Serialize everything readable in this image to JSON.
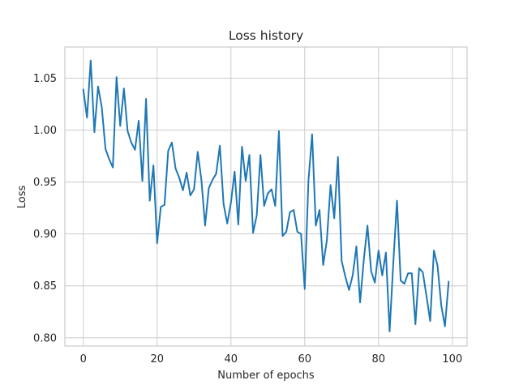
{
  "chart_data": {
    "type": "line",
    "title": "Loss history",
    "xlabel": "Number of epochs",
    "ylabel": "Loss",
    "xlim": [
      -5,
      104
    ],
    "ylim": [
      0.792,
      1.08
    ],
    "xticks": [
      0,
      20,
      40,
      60,
      80,
      100
    ],
    "yticks": [
      0.8,
      0.85,
      0.9,
      0.95,
      1.0,
      1.05
    ],
    "xtick_labels": [
      "0",
      "20",
      "40",
      "60",
      "80",
      "100"
    ],
    "ytick_labels": [
      "0.80",
      "0.85",
      "0.90",
      "0.95",
      "1.00",
      "1.05"
    ],
    "grid": true,
    "legend": "none",
    "series": [
      {
        "color": "#1f77b4",
        "x": [
          0,
          1,
          2,
          3,
          4,
          5,
          6,
          7,
          8,
          9,
          10,
          11,
          12,
          13,
          14,
          15,
          16,
          17,
          18,
          19,
          20,
          21,
          22,
          23,
          24,
          25,
          26,
          27,
          28,
          29,
          30,
          31,
          32,
          33,
          34,
          35,
          36,
          37,
          38,
          39,
          40,
          41,
          42,
          43,
          44,
          45,
          46,
          47,
          48,
          49,
          50,
          51,
          52,
          53,
          54,
          55,
          56,
          57,
          58,
          59,
          60,
          61,
          62,
          63,
          64,
          65,
          66,
          67,
          68,
          69,
          70,
          71,
          72,
          73,
          74,
          75,
          76,
          77,
          78,
          79,
          80,
          81,
          82,
          83,
          84,
          85,
          86,
          87,
          88,
          89,
          90,
          91,
          92,
          93,
          94,
          95,
          96,
          97,
          98,
          99
        ],
        "y": [
          1.039,
          1.012,
          1.067,
          0.998,
          1.042,
          1.022,
          0.982,
          0.972,
          0.964,
          1.051,
          1.004,
          1.04,
          0.999,
          0.988,
          0.981,
          1.009,
          0.951,
          1.03,
          0.932,
          0.966,
          0.891,
          0.926,
          0.928,
          0.98,
          0.988,
          0.963,
          0.954,
          0.942,
          0.959,
          0.937,
          0.943,
          0.979,
          0.952,
          0.908,
          0.944,
          0.952,
          0.958,
          0.985,
          0.929,
          0.91,
          0.93,
          0.96,
          0.909,
          0.984,
          0.951,
          0.976,
          0.901,
          0.918,
          0.976,
          0.927,
          0.939,
          0.943,
          0.927,
          0.999,
          0.898,
          0.902,
          0.921,
          0.923,
          0.902,
          0.9,
          0.847,
          0.951,
          0.996,
          0.908,
          0.923,
          0.87,
          0.894,
          0.947,
          0.915,
          0.974,
          0.874,
          0.859,
          0.846,
          0.86,
          0.888,
          0.834,
          0.875,
          0.908,
          0.864,
          0.853,
          0.884,
          0.86,
          0.882,
          0.806,
          0.872,
          0.932,
          0.855,
          0.852,
          0.862,
          0.862,
          0.813,
          0.867,
          0.863,
          0.84,
          0.816,
          0.884,
          0.869,
          0.831,
          0.811,
          0.854
        ]
      }
    ]
  }
}
